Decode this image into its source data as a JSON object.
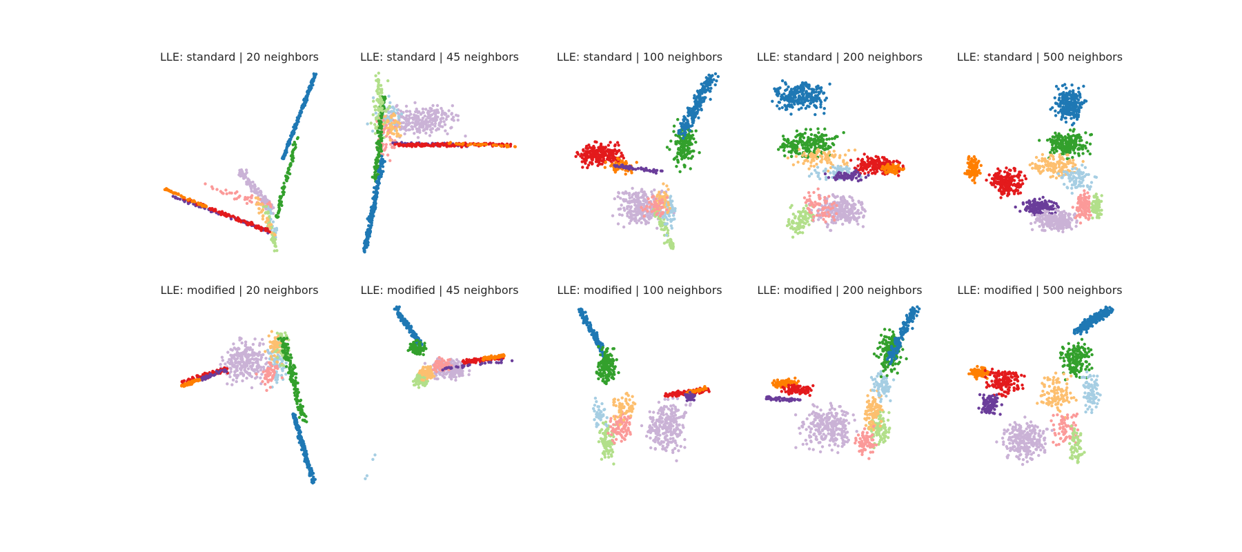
{
  "figure": {
    "palette": [
      "#1f78b4",
      "#33a02c",
      "#e31a1c",
      "#ff7f00",
      "#6a3d9a",
      "#cab2d6",
      "#a6cee3",
      "#b2df8a",
      "#fb9a99",
      "#fdbf6f"
    ]
  },
  "chart_data": [
    {
      "type": "scatter",
      "title": "LLE: standard | 20 neighbors",
      "method": "standard",
      "neighbors": 20,
      "grid": false,
      "axes": false
    },
    {
      "type": "scatter",
      "title": "LLE: standard | 45 neighbors",
      "method": "standard",
      "neighbors": 45,
      "grid": false,
      "axes": false
    },
    {
      "type": "scatter",
      "title": "LLE: standard | 100 neighbors",
      "method": "standard",
      "neighbors": 100,
      "grid": false,
      "axes": false
    },
    {
      "type": "scatter",
      "title": "LLE: standard | 200 neighbors",
      "method": "standard",
      "neighbors": 200,
      "grid": false,
      "axes": false
    },
    {
      "type": "scatter",
      "title": "LLE: standard | 500 neighbors",
      "method": "standard",
      "neighbors": 500,
      "grid": false,
      "axes": false
    },
    {
      "type": "scatter",
      "title": "LLE: modified | 20 neighbors",
      "method": "modified",
      "neighbors": 20,
      "grid": false,
      "axes": false
    },
    {
      "type": "scatter",
      "title": "LLE: modified | 45 neighbors",
      "method": "modified",
      "neighbors": 45,
      "grid": false,
      "axes": false
    },
    {
      "type": "scatter",
      "title": "LLE: modified | 100 neighbors",
      "method": "modified",
      "neighbors": 100,
      "grid": false,
      "axes": false
    },
    {
      "type": "scatter",
      "title": "LLE: modified | 200 neighbors",
      "method": "modified",
      "neighbors": 200,
      "grid": false,
      "axes": false
    },
    {
      "type": "scatter",
      "title": "LLE: modified | 500 neighbors",
      "method": "modified",
      "neighbors": 500,
      "grid": false,
      "axes": false
    }
  ]
}
